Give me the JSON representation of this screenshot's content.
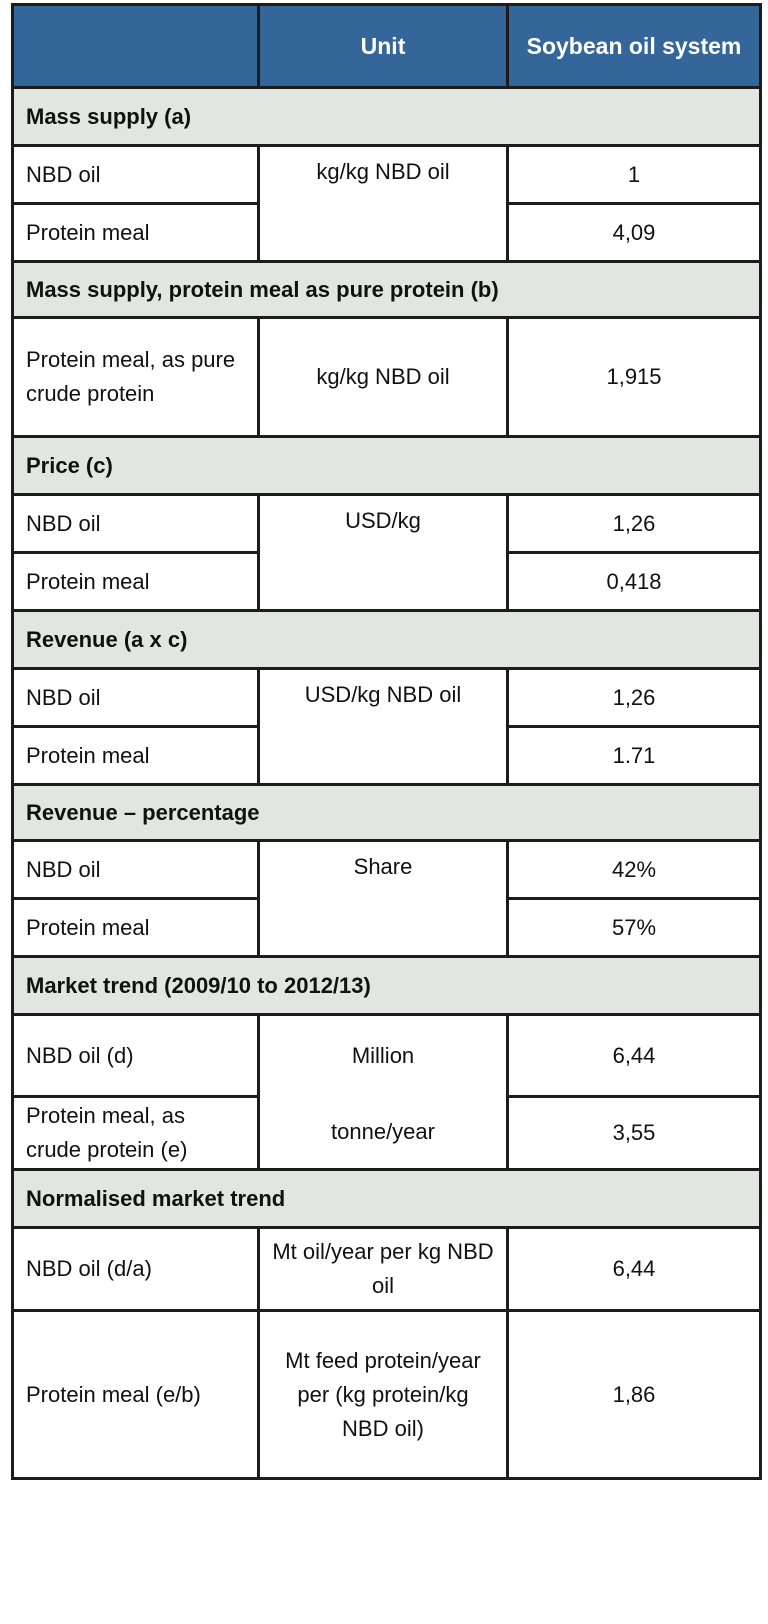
{
  "table": {
    "headers": [
      "",
      "Unit",
      "Soybean oil system"
    ],
    "sections": [
      {
        "title": "Mass supply (a)",
        "unit": "kg/kg NBD oil",
        "rows": [
          {
            "label": "NBD oil",
            "value": "1"
          },
          {
            "label": "Protein meal",
            "value": "4,09"
          }
        ]
      },
      {
        "title": "Mass supply, protein  meal as pure protein (b)",
        "unit": "kg/kg NBD oil",
        "rows": [
          {
            "label": "Protein meal, as pure crude protein",
            "value": "1,915"
          }
        ]
      },
      {
        "title": "Price (c)",
        "unit": "USD/kg",
        "rows": [
          {
            "label": "NBD oil",
            "value": "1,26"
          },
          {
            "label": "Protein meal",
            "value": "0,418"
          }
        ]
      },
      {
        "title": "Revenue (a x c)",
        "unit": "USD/kg NBD oil",
        "rows": [
          {
            "label": "NBD oil",
            "value": "1,26"
          },
          {
            "label": "Protein meal",
            "value": "1.71"
          }
        ]
      },
      {
        "title": "Revenue – percentage",
        "unit": "Share",
        "rows": [
          {
            "label": "NBD oil",
            "value": "42%"
          },
          {
            "label": "Protein meal",
            "value": "57%"
          }
        ]
      },
      {
        "title": "Market trend (2009/10 to 2012/13)",
        "unit_lines": [
          "Million",
          "tonne/year"
        ],
        "rows": [
          {
            "label": "NBD oil (d)",
            "value": "6,44"
          },
          {
            "label": "Protein meal, as crude protein (e)",
            "value": "3,55"
          }
        ]
      },
      {
        "title": "Normalised market trend",
        "rows": [
          {
            "label": "NBD oil (d/a)",
            "unit": "Mt oil/year per kg NBD oil",
            "value": "6,44"
          },
          {
            "label": "Protein meal (e/b)",
            "unit": "Mt feed protein/year per (kg protein/kg NBD oil)",
            "value": "1,86"
          }
        ]
      }
    ]
  },
  "colors": {
    "header_bg": "#356699",
    "header_text": "#ffffff",
    "section_bg": "#e2e6e1",
    "border": "#1c1c1c"
  }
}
